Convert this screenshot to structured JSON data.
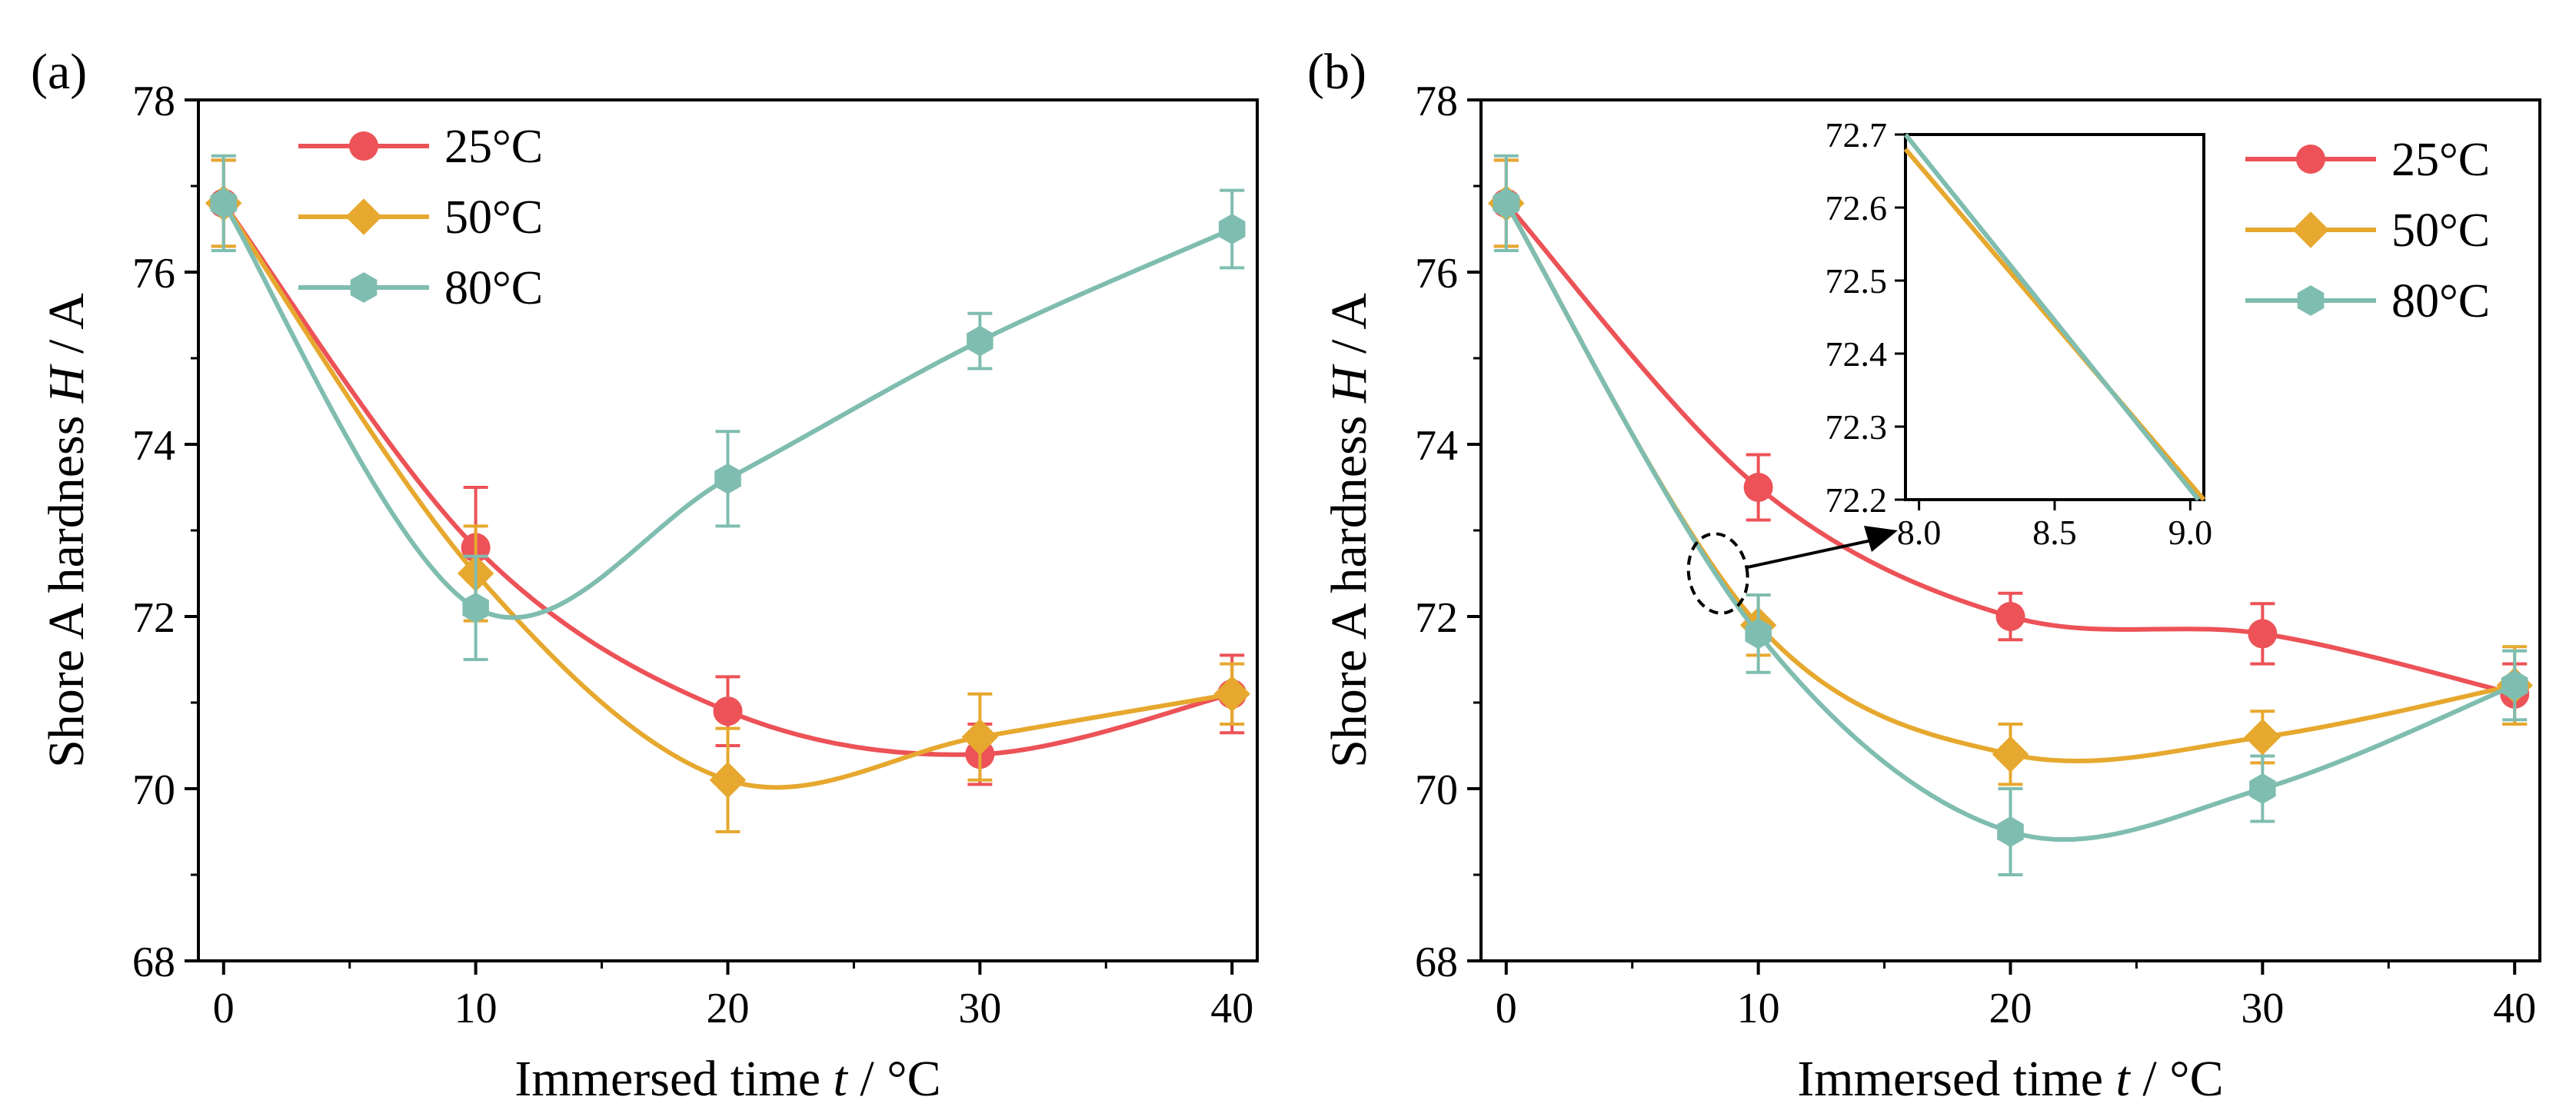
{
  "chart_data": [
    {
      "id": "a",
      "panel_label": "(a)",
      "type": "line",
      "xlabel_main": "Immersed time ",
      "xlabel_var": "t",
      "xlabel_unit": " / °C",
      "ylabel_main": "Shore A hardness ",
      "ylabel_var": "H",
      "ylabel_unit": " / A",
      "xlim": [
        -1,
        41
      ],
      "ylim": [
        68,
        78
      ],
      "xticks": [
        0,
        10,
        20,
        30,
        40
      ],
      "yticks": [
        68,
        70,
        72,
        74,
        76,
        78
      ],
      "legend_position": "top-left",
      "x": [
        0,
        10,
        20,
        30,
        40
      ],
      "series": [
        {
          "name": "25°C",
          "color": "#ec5257",
          "marker": "circle",
          "values": [
            76.8,
            72.8,
            70.9,
            70.4,
            71.1
          ],
          "errors": [
            0.5,
            0.7,
            0.4,
            0.35,
            0.45
          ]
        },
        {
          "name": "50°C",
          "color": "#e6a82e",
          "marker": "diamond",
          "values": [
            76.8,
            72.5,
            70.1,
            70.6,
            71.1
          ],
          "errors": [
            0.5,
            0.55,
            0.6,
            0.5,
            0.35
          ]
        },
        {
          "name": "80°C",
          "color": "#7fbdb0",
          "marker": "hexagon",
          "values": [
            76.8,
            72.1,
            73.6,
            75.2,
            76.5
          ],
          "errors": [
            0.55,
            0.6,
            0.55,
            0.32,
            0.45
          ]
        }
      ]
    },
    {
      "id": "b",
      "panel_label": "(b)",
      "type": "line",
      "xlabel_main": "Immersed time ",
      "xlabel_var": "t",
      "xlabel_unit": " / °C",
      "ylabel_main": "Shore A hardness ",
      "ylabel_var": "H",
      "ylabel_unit": " / A",
      "xlim": [
        -1,
        41
      ],
      "ylim": [
        68,
        78
      ],
      "xticks": [
        0,
        10,
        20,
        30,
        40
      ],
      "yticks": [
        68,
        70,
        72,
        74,
        76,
        78
      ],
      "legend_position": "top-right",
      "x": [
        0,
        10,
        20,
        30,
        40
      ],
      "series": [
        {
          "name": "25°C",
          "color": "#ec5257",
          "marker": "circle",
          "values": [
            76.8,
            73.5,
            72.0,
            71.8,
            71.1
          ],
          "errors": [
            0.5,
            0.38,
            0.27,
            0.35,
            0.35
          ]
        },
        {
          "name": "50°C",
          "color": "#e6a82e",
          "marker": "diamond",
          "values": [
            76.8,
            71.9,
            70.4,
            70.6,
            71.2
          ],
          "errors": [
            0.5,
            0.35,
            0.35,
            0.3,
            0.45
          ]
        },
        {
          "name": "80°C",
          "color": "#7fbdb0",
          "marker": "hexagon",
          "values": [
            76.8,
            71.8,
            69.5,
            70.0,
            71.2
          ],
          "errors": [
            0.55,
            0.45,
            0.5,
            0.38,
            0.4
          ]
        }
      ],
      "inset": {
        "xlim": [
          7.95,
          9.05
        ],
        "ylim": [
          72.2,
          72.7
        ],
        "xticks": [
          8.0,
          8.5,
          9.0
        ],
        "yticks": [
          72.2,
          72.3,
          72.4,
          72.5,
          72.6,
          72.7
        ],
        "lines": [
          {
            "name": "50°C",
            "color": "#e6a82e",
            "x": [
              7.95,
              9.05
            ],
            "y": [
              72.68,
              72.2
            ]
          },
          {
            "name": "80°C",
            "color": "#7fbdb0",
            "x": [
              7.95,
              9.03
            ],
            "y": [
              72.7,
              72.2
            ]
          }
        ]
      }
    }
  ]
}
